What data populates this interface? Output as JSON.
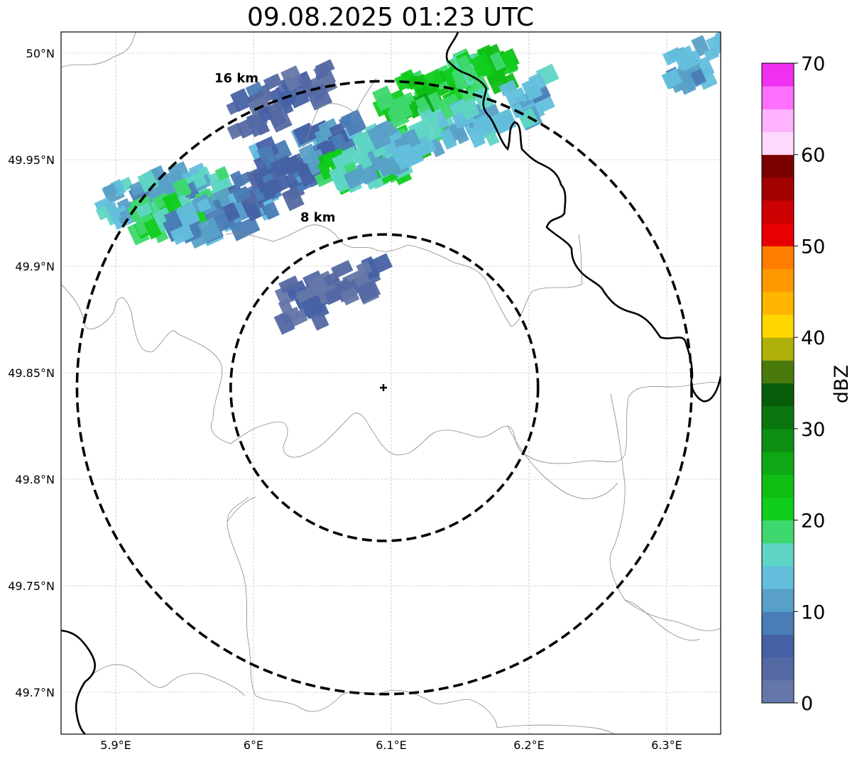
{
  "title": "09.08.2025 01:23 UTC",
  "map": {
    "lon_range": [
      5.86,
      6.34
    ],
    "lat_range": [
      49.68,
      50.01
    ],
    "x_ticks": [
      {
        "value": 5.9,
        "label": "5.9°E"
      },
      {
        "value": 6.0,
        "label": "6°E"
      },
      {
        "value": 6.1,
        "label": "6.1°E"
      },
      {
        "value": 6.2,
        "label": "6.2°E"
      },
      {
        "value": 6.3,
        "label": "6.3°E"
      }
    ],
    "y_ticks": [
      {
        "value": 50.0,
        "label": "50°N"
      },
      {
        "value": 49.95,
        "label": "49.95°N"
      },
      {
        "value": 49.9,
        "label": "49.9°N"
      },
      {
        "value": 49.85,
        "label": "49.85°N"
      },
      {
        "value": 49.8,
        "label": "49.8°N"
      },
      {
        "value": 49.75,
        "label": "49.75°N"
      },
      {
        "value": 49.7,
        "label": "49.7°N"
      }
    ],
    "gridlines": true,
    "center": {
      "lon": 6.095,
      "lat": 49.843
    },
    "rings": [
      {
        "radius_km": 8,
        "label": "8 km"
      },
      {
        "radius_km": 16,
        "label": "16 km"
      }
    ],
    "colors": {
      "border": "#000000",
      "admin": "#888888",
      "ring": "#000000",
      "grid": "#b0b0b0"
    }
  },
  "colorbar": {
    "label": "dBZ",
    "vmin": 0,
    "vmax": 70,
    "ticks": [
      0,
      10,
      20,
      30,
      40,
      50,
      60,
      70
    ],
    "colors": [
      "#6577a8",
      "#5468a3",
      "#4661a5",
      "#4a7cb5",
      "#58a0c8",
      "#63bfdc",
      "#5fd6c4",
      "#3ed86e",
      "#10ce1c",
      "#10be14",
      "#0ea814",
      "#0c8f12",
      "#0a760e",
      "#075d0a",
      "#4a7a0c",
      "#b0b00a",
      "#ffd700",
      "#ffb600",
      "#ff9900",
      "#ff7e00",
      "#e60000",
      "#cc0000",
      "#a30000",
      "#7a0000",
      "#ffd9ff",
      "#ffb2ff",
      "#ff70ff",
      "#f030f0"
    ]
  },
  "chart_data": {
    "type": "heatmap",
    "title": "09.08.2025 01:23 UTC",
    "xlabel": "",
    "ylabel": "",
    "xlim": [
      5.86,
      6.34
    ],
    "ylim": [
      49.68,
      50.01
    ],
    "colorbar_label": "dBZ",
    "colorbar_range": [
      0,
      70
    ],
    "echo_cells": [
      {
        "lon": 5.92,
        "lat": 49.935,
        "dbz": 14
      },
      {
        "lon": 5.94,
        "lat": 49.93,
        "dbz": 20
      },
      {
        "lon": 5.97,
        "lat": 49.925,
        "dbz": 12
      },
      {
        "lon": 6.01,
        "lat": 49.94,
        "dbz": 8
      },
      {
        "lon": 6.03,
        "lat": 49.955,
        "dbz": 10
      },
      {
        "lon": 6.08,
        "lat": 49.95,
        "dbz": 20
      },
      {
        "lon": 6.1,
        "lat": 49.96,
        "dbz": 16
      },
      {
        "lon": 6.12,
        "lat": 49.985,
        "dbz": 21
      },
      {
        "lon": 6.15,
        "lat": 49.99,
        "dbz": 22
      },
      {
        "lon": 6.17,
        "lat": 49.975,
        "dbz": 14
      },
      {
        "lon": 6.01,
        "lat": 49.98,
        "dbz": 5
      },
      {
        "lon": 6.05,
        "lat": 49.89,
        "dbz": 3
      },
      {
        "lon": 6.33,
        "lat": 50.0,
        "dbz": 12
      }
    ]
  }
}
